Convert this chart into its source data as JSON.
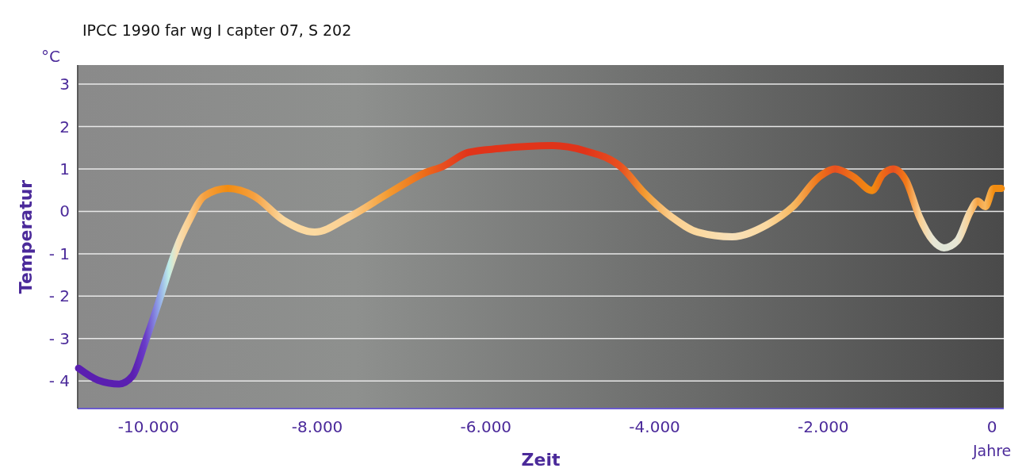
{
  "chart_data": {
    "type": "line",
    "title": "IPCC 1990 far wg I capter 07, S 202",
    "xlabel": "Zeit",
    "ylabel": "Temperatur",
    "annotations": [
      "°C",
      "Jahre"
    ],
    "xlim": [
      -10840,
      140
    ],
    "xticks": [
      {
        "value": -10000,
        "label": "-10.000"
      },
      {
        "value": -8000,
        "label": "-8.000"
      },
      {
        "value": -6000,
        "label": "-6.000"
      },
      {
        "value": -4000,
        "label": "-4.000"
      },
      {
        "value": -2000,
        "label": "-2.000"
      },
      0
    ],
    "ylim": [
      -4.65,
      3.45
    ],
    "yticks": [
      {
        "value": -4,
        "label": "- 4"
      },
      {
        "value": -3,
        "label": "- 3"
      },
      {
        "value": -2,
        "label": "- 2"
      },
      {
        "value": -1,
        "label": "- 1"
      },
      0,
      1,
      2,
      3
    ],
    "grid": "y",
    "marker": "none",
    "line_style": "solid",
    "series": [
      {
        "x": [
          -10830,
          -10600,
          -10350,
          -10190,
          -10040,
          -9880,
          -9760,
          -9660,
          -9530,
          -9340,
          -9060,
          -8750,
          -8400,
          -8030,
          -7620,
          -7150,
          -6710,
          -6520,
          -6210,
          -5840,
          -5210,
          -4830,
          -4400,
          -4120,
          -3800,
          -3490,
          -3080,
          -2670,
          -2360,
          -2050,
          -1860,
          -1640,
          -1420,
          -1300,
          -1170,
          -1020,
          -860,
          -700,
          -570,
          -410,
          -260,
          -170,
          -80,
          20,
          110
        ],
        "values": [
          -3.7,
          -3.98,
          -4.07,
          -3.88,
          -3.08,
          -2.14,
          -1.39,
          -0.83,
          -0.26,
          0.36,
          0.54,
          0.36,
          -0.21,
          -0.49,
          -0.13,
          0.43,
          0.92,
          1.05,
          1.39,
          1.48,
          1.55,
          1.43,
          1.05,
          0.43,
          -0.13,
          -0.49,
          -0.6,
          -0.32,
          0.11,
          0.81,
          1.0,
          0.81,
          0.49,
          0.86,
          1.0,
          0.73,
          -0.13,
          -0.69,
          -0.86,
          -0.69,
          -0.02,
          0.24,
          0.11,
          0.54,
          0.54
        ],
        "colors": [
          "#5a1fb0",
          "#5a1fb0",
          "#5a1fb0",
          "#5a1fb0",
          "#6a3cc8",
          "#8fa4e8",
          "#bfeee8",
          "#f5e0b8",
          "#fbcf90",
          "#f5a040",
          "#f28c10",
          "#f5a040",
          "#fbd9a0",
          "#fbd9a0",
          "#fbcf90",
          "#f39a30",
          "#ec6a18",
          "#e85020",
          "#e0341a",
          "#e0341a",
          "#e0341a",
          "#e0341a",
          "#e85020",
          "#f39a30",
          "#fbcf90",
          "#fbd9a0",
          "#f7e0b8",
          "#fbd9a0",
          "#f7b860",
          "#ee7418",
          "#e85020",
          "#ee7418",
          "#f28c10",
          "#ec6a18",
          "#e85020",
          "#f07a18",
          "#fbcf90",
          "#e8e6d4",
          "#e0e6d8",
          "#e8e6d4",
          "#fbcf90",
          "#f5a040",
          "#f7b860",
          "#f28c10",
          "#f28c10"
        ]
      }
    ]
  }
}
